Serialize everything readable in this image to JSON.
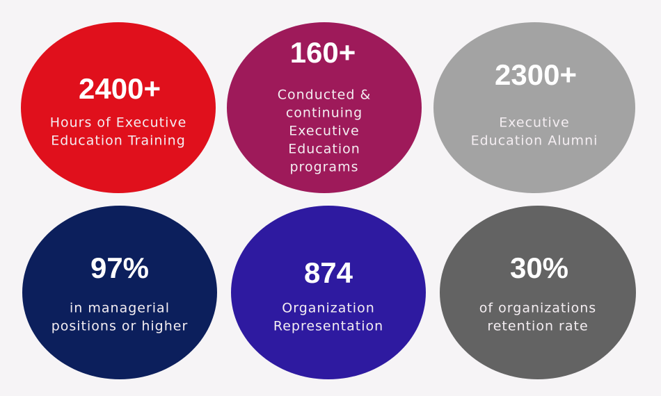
{
  "stats": [
    {
      "value": "2400+",
      "label": [
        "Hours of Executive",
        "Education Training"
      ]
    },
    {
      "value": "160+",
      "label": [
        "Conducted &",
        "continuing",
        "Executive",
        "Education",
        "programs"
      ]
    },
    {
      "value": "2300+",
      "label": [
        "Executive",
        "Education Alumni"
      ]
    },
    {
      "value": "97%",
      "label": [
        "in managerial",
        "positions or higher"
      ]
    },
    {
      "value": "874",
      "label": [
        "Organization",
        "Representation"
      ]
    },
    {
      "value": "30%",
      "label": [
        "of organizations",
        "retention rate"
      ]
    }
  ]
}
